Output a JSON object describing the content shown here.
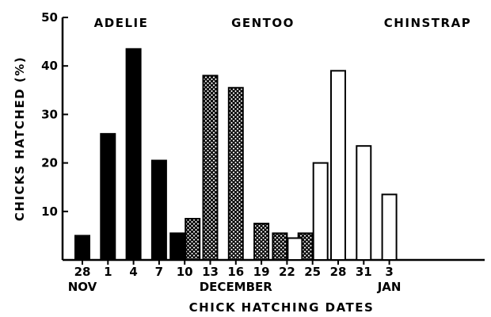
{
  "chart_data": {
    "type": "bar",
    "ylabel": "CHICKS HATCHED (%)",
    "xlabel": "CHICK HATCHING DATES",
    "ylim": [
      0,
      50
    ],
    "yticks": [
      "10",
      "20",
      "30",
      "40",
      "50"
    ],
    "categories": [
      "28",
      "1",
      "4",
      "7",
      "10",
      "13",
      "16",
      "19",
      "22",
      "25",
      "28",
      "31",
      "3"
    ],
    "month_labels": [
      {
        "text": "NOV",
        "under": "28"
      },
      {
        "text": "DECEMBER",
        "under": "16"
      },
      {
        "text": "JAN",
        "under": "3"
      }
    ],
    "group_labels": [
      "ADELIE",
      "GENTOO",
      "CHINSTRAP"
    ],
    "series": [
      {
        "name": "ADELIE",
        "style": "solid-black",
        "points": [
          {
            "x": "28 NOV",
            "y": 5
          },
          {
            "x": "1 DEC",
            "y": 26
          },
          {
            "x": "4 DEC",
            "y": 43.5
          },
          {
            "x": "7 DEC",
            "y": 20.5
          },
          {
            "x": "10 DEC",
            "y": 5.5
          }
        ]
      },
      {
        "name": "GENTOO",
        "style": "crosshatch",
        "points": [
          {
            "x": "10 DEC",
            "y": 8.5
          },
          {
            "x": "13 DEC",
            "y": 38
          },
          {
            "x": "16 DEC",
            "y": 35.5
          },
          {
            "x": "19 DEC",
            "y": 7.5
          },
          {
            "x": "22 DEC",
            "y": 5.5
          },
          {
            "x": "25 DEC",
            "y": 5.5
          }
        ]
      },
      {
        "name": "CHINSTRAP",
        "style": "open-white",
        "points": [
          {
            "x": "22 DEC",
            "y": 4.5
          },
          {
            "x": "25 DEC",
            "y": 20
          },
          {
            "x": "28 DEC",
            "y": 39
          },
          {
            "x": "31 DEC",
            "y": 23.5
          },
          {
            "x": "3 JAN",
            "y": 13.5
          }
        ]
      }
    ]
  }
}
